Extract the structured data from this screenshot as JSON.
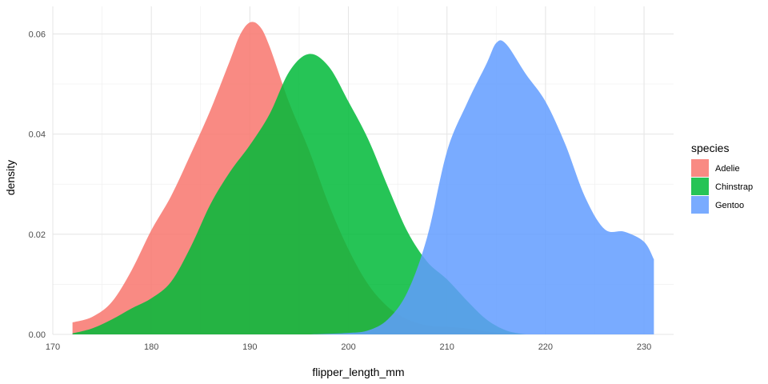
{
  "chart_data": {
    "type": "area",
    "subtype": "density",
    "title": "",
    "xlabel": "flipper_length_mm",
    "ylabel": "density",
    "xlim": [
      170,
      233
    ],
    "ylim": [
      0,
      0.0655
    ],
    "x_ticks": [
      170,
      180,
      190,
      200,
      210,
      220,
      230
    ],
    "y_ticks": [
      0,
      0.02,
      0.04,
      0.06
    ],
    "x_tick_labels": [
      "170",
      "180",
      "190",
      "200",
      "210",
      "220",
      "230"
    ],
    "y_tick_labels": [
      "0.00",
      "0.02",
      "0.04",
      "0.06"
    ],
    "grid": true,
    "legend": {
      "title": "species",
      "position": "right",
      "entries": [
        "Adelie",
        "Chinstrap",
        "Gentoo"
      ]
    },
    "series": [
      {
        "name": "Adelie",
        "color": "#F8766D",
        "points": [
          [
            172,
            0.0024
          ],
          [
            174,
            0.0035
          ],
          [
            176,
            0.0065
          ],
          [
            178,
            0.0128
          ],
          [
            180,
            0.0208
          ],
          [
            182,
            0.0276
          ],
          [
            184,
            0.036
          ],
          [
            186,
            0.0448
          ],
          [
            188,
            0.0548
          ],
          [
            189,
            0.0598
          ],
          [
            190,
            0.0623
          ],
          [
            191,
            0.0615
          ],
          [
            192,
            0.0575
          ],
          [
            194,
            0.0462
          ],
          [
            196,
            0.0368
          ],
          [
            198,
            0.026
          ],
          [
            200,
            0.017
          ],
          [
            202,
            0.01
          ],
          [
            204,
            0.0055
          ],
          [
            206,
            0.003
          ],
          [
            208,
            0.0018
          ],
          [
            210,
            0.0015
          ],
          [
            212,
            0.0012
          ],
          [
            214,
            0.0006
          ],
          [
            216,
            0.0002
          ],
          [
            217,
            0.0
          ]
        ]
      },
      {
        "name": "Chinstrap",
        "color": "#00BA38",
        "points": [
          [
            172,
            0.0002
          ],
          [
            174,
            0.0012
          ],
          [
            176,
            0.003
          ],
          [
            178,
            0.0052
          ],
          [
            180,
            0.0072
          ],
          [
            182,
            0.0105
          ],
          [
            184,
            0.0175
          ],
          [
            186,
            0.026
          ],
          [
            188,
            0.0325
          ],
          [
            190,
            0.0378
          ],
          [
            192,
            0.044
          ],
          [
            194,
            0.0525
          ],
          [
            196,
            0.056
          ],
          [
            198,
            0.0535
          ],
          [
            200,
            0.0465
          ],
          [
            202,
            0.039
          ],
          [
            204,
            0.0295
          ],
          [
            206,
            0.0205
          ],
          [
            208,
            0.0145
          ],
          [
            210,
            0.011
          ],
          [
            212,
            0.0068
          ],
          [
            214,
            0.003
          ],
          [
            216,
            0.0008
          ],
          [
            218,
            0.0
          ]
        ]
      },
      {
        "name": "Gentoo",
        "color": "#619CFF",
        "points": [
          [
            196,
            0.0
          ],
          [
            200,
            0.0003
          ],
          [
            202,
            0.0008
          ],
          [
            204,
            0.003
          ],
          [
            206,
            0.0085
          ],
          [
            208,
            0.0195
          ],
          [
            210,
            0.0365
          ],
          [
            212,
            0.046
          ],
          [
            214,
            0.054
          ],
          [
            215,
            0.0582
          ],
          [
            216,
            0.058
          ],
          [
            218,
            0.052
          ],
          [
            220,
            0.0465
          ],
          [
            222,
            0.038
          ],
          [
            224,
            0.0275
          ],
          [
            226,
            0.021
          ],
          [
            228,
            0.0205
          ],
          [
            230,
            0.0185
          ],
          [
            231,
            0.015
          ]
        ]
      }
    ]
  }
}
